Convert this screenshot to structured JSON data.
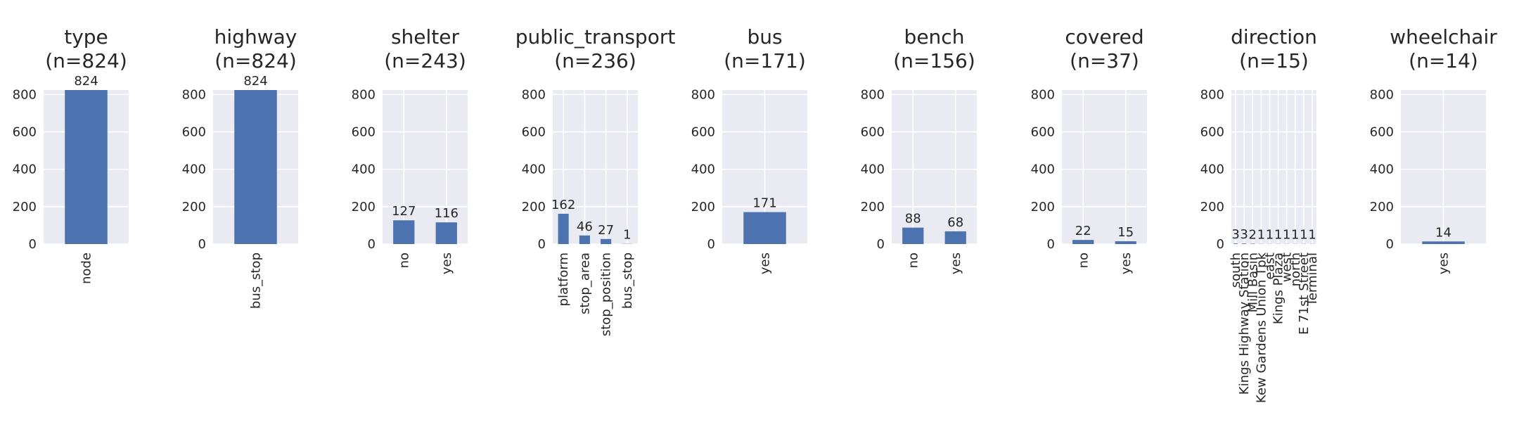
{
  "figure": {
    "background": "#ffffff",
    "axes_background": "#eaeaf2",
    "grid_color": "#ffffff",
    "bar_color": "#4c72b0",
    "text_color": "#262626"
  },
  "chart_data": [
    {
      "type": "bar",
      "title": "type\n(n=824)",
      "categories": [
        "node"
      ],
      "values": [
        824
      ],
      "ylim": [
        0,
        824
      ],
      "yticks": [
        0,
        200,
        400,
        600,
        800
      ],
      "data_labels": [
        "824"
      ],
      "grid": true
    },
    {
      "type": "bar",
      "title": "highway\n(n=824)",
      "categories": [
        "bus_stop"
      ],
      "values": [
        824
      ],
      "ylim": [
        0,
        824
      ],
      "yticks": [
        0,
        200,
        400,
        600,
        800
      ],
      "data_labels": [
        "824"
      ],
      "grid": true
    },
    {
      "type": "bar",
      "title": "shelter\n(n=243)",
      "categories": [
        "no",
        "yes"
      ],
      "values": [
        127,
        116
      ],
      "ylim": [
        0,
        824
      ],
      "yticks": [
        0,
        200,
        400,
        600,
        800
      ],
      "data_labels": [
        "127",
        "116"
      ],
      "grid": true
    },
    {
      "type": "bar",
      "title": "public_transport\n(n=236)",
      "categories": [
        "platform",
        "stop_area",
        "stop_position",
        "bus_stop"
      ],
      "values": [
        162,
        46,
        27,
        1
      ],
      "ylim": [
        0,
        824
      ],
      "yticks": [
        0,
        200,
        400,
        600,
        800
      ],
      "data_labels": [
        "162",
        "46",
        "27",
        "1"
      ],
      "grid": true
    },
    {
      "type": "bar",
      "title": "bus\n(n=171)",
      "categories": [
        "yes"
      ],
      "values": [
        171
      ],
      "ylim": [
        0,
        824
      ],
      "yticks": [
        0,
        200,
        400,
        600,
        800
      ],
      "data_labels": [
        "171"
      ],
      "grid": true
    },
    {
      "type": "bar",
      "title": "bench\n(n=156)",
      "categories": [
        "no",
        "yes"
      ],
      "values": [
        88,
        68
      ],
      "ylim": [
        0,
        824
      ],
      "yticks": [
        0,
        200,
        400,
        600,
        800
      ],
      "data_labels": [
        "88",
        "68"
      ],
      "grid": true
    },
    {
      "type": "bar",
      "title": "covered\n(n=37)",
      "categories": [
        "no",
        "yes"
      ],
      "values": [
        22,
        15
      ],
      "ylim": [
        0,
        824
      ],
      "yticks": [
        0,
        200,
        400,
        600,
        800
      ],
      "data_labels": [
        "22",
        "15"
      ],
      "grid": true
    },
    {
      "type": "bar",
      "title": "direction\n(n=15)",
      "categories": [
        "south",
        "Kings Highway Station",
        "Mill Basin",
        "Kew Gardens Union Tpk",
        "east",
        "Kings Plaza",
        "west",
        "north",
        "E 71st Street",
        "Terminal"
      ],
      "values": [
        3,
        3,
        2,
        1,
        1,
        1,
        1,
        1,
        1,
        1
      ],
      "ylim": [
        0,
        824
      ],
      "yticks": [
        0,
        200,
        400,
        600,
        800
      ],
      "data_labels": [
        "3",
        "3",
        "2",
        "1",
        "1",
        "1",
        "1",
        "1",
        "1",
        "1"
      ],
      "grid": true
    },
    {
      "type": "bar",
      "title": "wheelchair\n(n=14)",
      "categories": [
        "yes"
      ],
      "values": [
        14
      ],
      "ylim": [
        0,
        824
      ],
      "yticks": [
        0,
        200,
        400,
        600,
        800
      ],
      "data_labels": [
        "14"
      ],
      "grid": true
    }
  ]
}
